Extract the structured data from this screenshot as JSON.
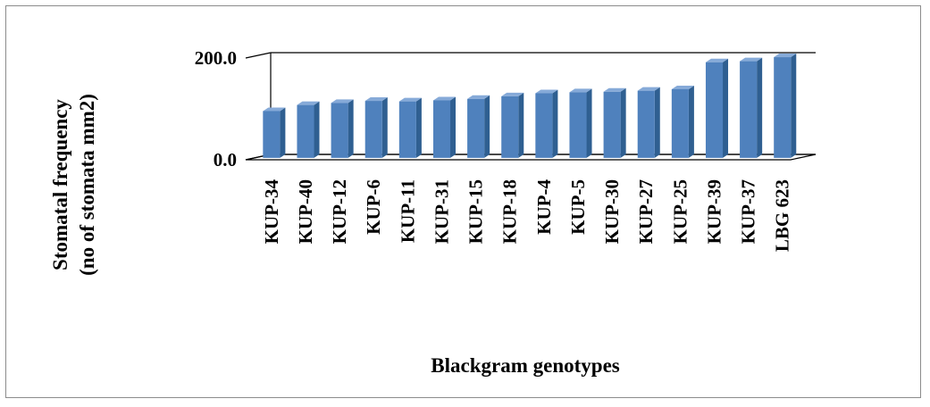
{
  "chart_data": {
    "type": "bar",
    "title": "",
    "xlabel": "Blackgram genotypes",
    "ylabel_lines": [
      "Stomatal frequency",
      "(no of stomata mm2)"
    ],
    "categories": [
      "KUP-34",
      "KUP-40",
      "KUP-12",
      "KUP-6",
      "KUP-11",
      "KUP-31",
      "KUP-15",
      "KUP-18",
      "KUP-4",
      "KUP-5",
      "KUP-30",
      "KUP-27",
      "KUP-25",
      "KUP-39",
      "KUP-37",
      "LBG 623"
    ],
    "values": [
      92,
      104,
      108,
      112,
      111,
      113,
      116,
      121,
      127,
      129,
      130,
      132,
      135,
      188,
      190,
      198
    ],
    "ylim": [
      0,
      200
    ],
    "yticks": [
      "0.0",
      "200.0"
    ],
    "bar_color": "#4f81bd",
    "bar_side_color": "#2f5f91",
    "bar_top_color": "#86aad8",
    "grid": true,
    "legend": "none"
  }
}
